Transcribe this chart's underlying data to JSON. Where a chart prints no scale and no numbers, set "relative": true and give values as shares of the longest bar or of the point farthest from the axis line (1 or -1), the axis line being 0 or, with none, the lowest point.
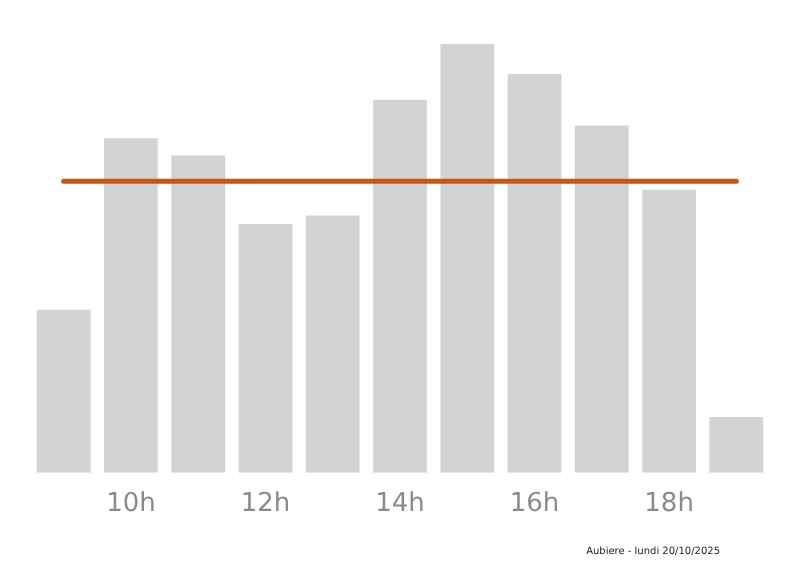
{
  "chart_data": {
    "type": "bar",
    "relative": true,
    "categories": [
      null,
      "10h",
      null,
      "12h",
      null,
      "14h",
      null,
      "16h",
      null,
      "18h",
      null
    ],
    "values": [
      0.38,
      0.78,
      0.74,
      0.58,
      0.6,
      0.87,
      1,
      0.93,
      0.81,
      0.66,
      0.13
    ],
    "color": "#d3d3d3",
    "ref_lines": [
      {
        "axis": "y",
        "value": 0.68,
        "color": "#c8561a"
      }
    ],
    "annotations": [
      "Aubiere - lundi 20/10/2025"
    ],
    "grid": false,
    "legend": false
  }
}
